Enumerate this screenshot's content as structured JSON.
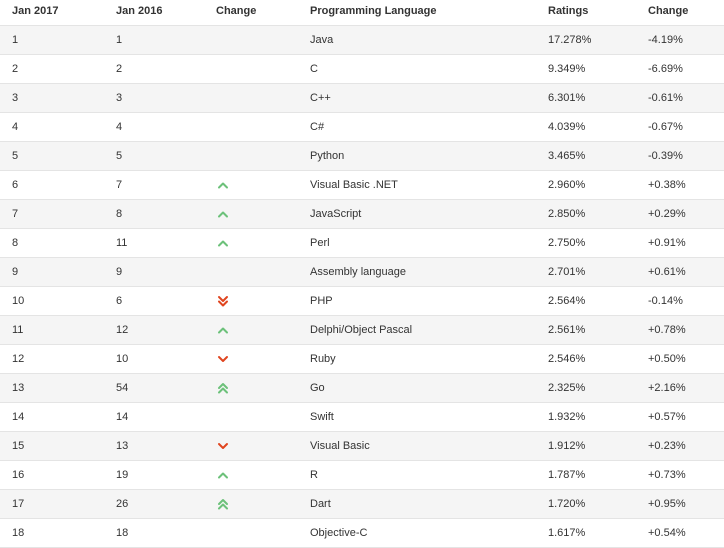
{
  "headers": {
    "jan2017": "Jan 2017",
    "jan2016": "Jan 2016",
    "change": "Change",
    "language": "Programming Language",
    "ratings": "Ratings",
    "change_pct": "Change"
  },
  "colors": {
    "up": "#6cc17a",
    "down": "#e0451f"
  },
  "rows": [
    {
      "rank2017": "1",
      "rank2016": "1",
      "trend": "none",
      "language": "Java",
      "rating": "17.278%",
      "delta": "-4.19%"
    },
    {
      "rank2017": "2",
      "rank2016": "2",
      "trend": "none",
      "language": "C",
      "rating": "9.349%",
      "delta": "-6.69%"
    },
    {
      "rank2017": "3",
      "rank2016": "3",
      "trend": "none",
      "language": "C++",
      "rating": "6.301%",
      "delta": "-0.61%"
    },
    {
      "rank2017": "4",
      "rank2016": "4",
      "trend": "none",
      "language": "C#",
      "rating": "4.039%",
      "delta": "-0.67%"
    },
    {
      "rank2017": "5",
      "rank2016": "5",
      "trend": "none",
      "language": "Python",
      "rating": "3.465%",
      "delta": "-0.39%"
    },
    {
      "rank2017": "6",
      "rank2016": "7",
      "trend": "up",
      "language": "Visual Basic .NET",
      "rating": "2.960%",
      "delta": "+0.38%"
    },
    {
      "rank2017": "7",
      "rank2016": "8",
      "trend": "up",
      "language": "JavaScript",
      "rating": "2.850%",
      "delta": "+0.29%"
    },
    {
      "rank2017": "8",
      "rank2016": "11",
      "trend": "up",
      "language": "Perl",
      "rating": "2.750%",
      "delta": "+0.91%"
    },
    {
      "rank2017": "9",
      "rank2016": "9",
      "trend": "none",
      "language": "Assembly language",
      "rating": "2.701%",
      "delta": "+0.61%"
    },
    {
      "rank2017": "10",
      "rank2016": "6",
      "trend": "double-down",
      "language": "PHP",
      "rating": "2.564%",
      "delta": "-0.14%"
    },
    {
      "rank2017": "11",
      "rank2016": "12",
      "trend": "up",
      "language": "Delphi/Object Pascal",
      "rating": "2.561%",
      "delta": "+0.78%"
    },
    {
      "rank2017": "12",
      "rank2016": "10",
      "trend": "down",
      "language": "Ruby",
      "rating": "2.546%",
      "delta": "+0.50%"
    },
    {
      "rank2017": "13",
      "rank2016": "54",
      "trend": "double-up",
      "language": "Go",
      "rating": "2.325%",
      "delta": "+2.16%"
    },
    {
      "rank2017": "14",
      "rank2016": "14",
      "trend": "none",
      "language": "Swift",
      "rating": "1.932%",
      "delta": "+0.57%"
    },
    {
      "rank2017": "15",
      "rank2016": "13",
      "trend": "down",
      "language": "Visual Basic",
      "rating": "1.912%",
      "delta": "+0.23%"
    },
    {
      "rank2017": "16",
      "rank2016": "19",
      "trend": "up",
      "language": "R",
      "rating": "1.787%",
      "delta": "+0.73%"
    },
    {
      "rank2017": "17",
      "rank2016": "26",
      "trend": "double-up",
      "language": "Dart",
      "rating": "1.720%",
      "delta": "+0.95%"
    },
    {
      "rank2017": "18",
      "rank2016": "18",
      "trend": "none",
      "language": "Objective-C",
      "rating": "1.617%",
      "delta": "+0.54%"
    }
  ]
}
